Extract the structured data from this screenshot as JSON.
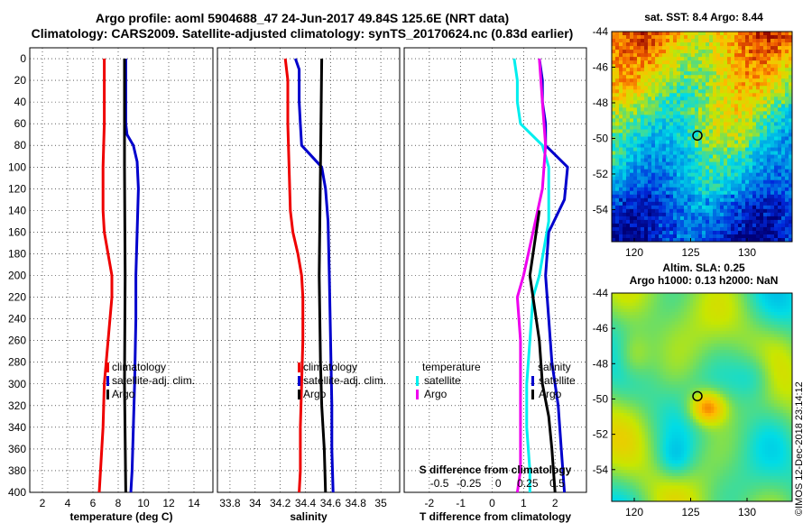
{
  "header": {
    "line1": "Argo profile: aoml 5904688_47 24-Jun-2017 49.84S 125.6E (NRT data)",
    "line2": "Climatology: CARS2009. Satellite-adjusted climatology: synTS_20170624.nc (0.83d earlier)"
  },
  "credit": "©IMOS 12-Dec-2018 23:14:12",
  "colors": {
    "red": "#ee0000",
    "blue": "#0000cc",
    "black": "#000000",
    "cyan": "#00eeee",
    "magenta": "#ee00ee"
  },
  "depth_axis": {
    "ticks": [
      0,
      20,
      40,
      60,
      80,
      100,
      120,
      140,
      160,
      180,
      200,
      220,
      240,
      260,
      280,
      300,
      320,
      340,
      360,
      380,
      400
    ]
  },
  "chart_data": [
    {
      "type": "line",
      "name": "temperature",
      "xlabel": "temperature (deg C)",
      "ylabel": "depth",
      "xlim": [
        1,
        15.5
      ],
      "ylim": [
        400,
        -10
      ],
      "xticks": [
        2,
        4,
        6,
        8,
        10,
        12,
        14
      ],
      "xticklabels": [
        "2",
        "4",
        "6",
        "8",
        "10",
        "12",
        "14"
      ],
      "legend": [
        "climatology",
        "satellite-adj. clim.",
        "Argo"
      ],
      "series": [
        {
          "name": "climatology",
          "color": "red",
          "points": [
            [
              6.9,
              0
            ],
            [
              6.9,
              20
            ],
            [
              6.9,
              60
            ],
            [
              6.8,
              100
            ],
            [
              6.8,
              140
            ],
            [
              6.9,
              160
            ],
            [
              7.2,
              180
            ],
            [
              7.5,
              200
            ],
            [
              7.5,
              220
            ],
            [
              7.2,
              260
            ],
            [
              6.9,
              300
            ],
            [
              6.8,
              340
            ],
            [
              6.6,
              380
            ],
            [
              6.5,
              400
            ]
          ]
        },
        {
          "name": "satellite-adj. clim.",
          "color": "blue",
          "points": [
            [
              8.6,
              0
            ],
            [
              8.6,
              20
            ],
            [
              8.6,
              60
            ],
            [
              8.7,
              70
            ],
            [
              9.2,
              80
            ],
            [
              9.5,
              95
            ],
            [
              9.6,
              120
            ],
            [
              9.5,
              160
            ],
            [
              9.4,
              200
            ],
            [
              9.4,
              240
            ],
            [
              9.3,
              300
            ],
            [
              9.2,
              340
            ],
            [
              9.1,
              380
            ],
            [
              9.0,
              400
            ]
          ]
        },
        {
          "name": "Argo",
          "color": "black",
          "points": [
            [
              8.5,
              0
            ],
            [
              8.5,
              100
            ],
            [
              8.55,
              200
            ],
            [
              8.5,
              300
            ],
            [
              8.6,
              400
            ]
          ]
        }
      ]
    },
    {
      "type": "line",
      "name": "salinity",
      "xlabel": "salinity",
      "ylabel": "depth",
      "xlim": [
        33.7,
        35.15
      ],
      "ylim": [
        400,
        -10
      ],
      "xticks": [
        33.8,
        34,
        34.2,
        34.4,
        34.6,
        34.8,
        35
      ],
      "xticklabels": [
        "33.8",
        "34",
        "34.2",
        "34.4",
        "34.6",
        "34.8",
        "35"
      ],
      "legend": [
        "climatology",
        "satellite-adj. clim.",
        "Argo"
      ],
      "series": [
        {
          "name": "climatology",
          "color": "red",
          "points": [
            [
              34.24,
              0
            ],
            [
              34.26,
              20
            ],
            [
              34.26,
              60
            ],
            [
              34.27,
              100
            ],
            [
              34.28,
              140
            ],
            [
              34.3,
              160
            ],
            [
              34.34,
              180
            ],
            [
              34.37,
              200
            ],
            [
              34.38,
              220
            ],
            [
              34.38,
              260
            ],
            [
              34.37,
              300
            ],
            [
              34.36,
              340
            ],
            [
              34.36,
              380
            ],
            [
              34.35,
              400
            ]
          ]
        },
        {
          "name": "satellite-adj. clim.",
          "color": "blue",
          "points": [
            [
              34.32,
              0
            ],
            [
              34.35,
              10
            ],
            [
              34.35,
              40
            ],
            [
              34.36,
              60
            ],
            [
              34.37,
              80
            ],
            [
              34.53,
              100
            ],
            [
              34.56,
              120
            ],
            [
              34.58,
              150
            ],
            [
              34.59,
              200
            ],
            [
              34.6,
              260
            ],
            [
              34.61,
              320
            ],
            [
              34.61,
              360
            ],
            [
              34.62,
              400
            ]
          ]
        },
        {
          "name": "Argo",
          "color": "black",
          "points": [
            [
              34.53,
              0
            ],
            [
              34.52,
              100
            ],
            [
              34.51,
              200
            ],
            [
              34.52,
              280
            ],
            [
              34.53,
              320
            ],
            [
              34.55,
              360
            ],
            [
              34.56,
              400
            ]
          ]
        }
      ]
    },
    {
      "type": "line",
      "name": "difference from climatology",
      "xlabel": "T difference from climatology",
      "xlabel2": "S difference from climatology",
      "ylabel": "depth",
      "xlim": [
        -2.8,
        3.0
      ],
      "ylim": [
        400,
        -10
      ],
      "xticks": [
        -2,
        -1,
        0,
        1,
        2
      ],
      "xticklabels": [
        "-2",
        "-1",
        "0",
        "1",
        "2"
      ],
      "xticks2_values": [
        -0.5,
        -0.25,
        0,
        0.25,
        0.5
      ],
      "xticks2_labels": [
        "-0.5",
        "-0.25",
        "0",
        "0.25",
        "0.5"
      ],
      "legend_left": [
        "temperature",
        "satellite",
        "Argo"
      ],
      "legend_right": [
        "salinity",
        "satellite",
        "Argo"
      ],
      "series": [
        {
          "name": "temperature satellite",
          "color": "cyan",
          "points": [
            [
              0.7,
              0
            ],
            [
              0.8,
              20
            ],
            [
              0.8,
              40
            ],
            [
              0.9,
              60
            ],
            [
              1.6,
              80
            ],
            [
              1.8,
              100
            ],
            [
              1.8,
              150
            ],
            [
              1.5,
              200
            ],
            [
              1.3,
              220
            ],
            [
              1.2,
              260
            ],
            [
              1.1,
              300
            ],
            [
              1.1,
              340
            ],
            [
              1.2,
              380
            ],
            [
              1.2,
              400
            ]
          ]
        },
        {
          "name": "salinity satellite",
          "color": "blue",
          "points": [
            [
              1.5,
              0
            ],
            [
              1.6,
              20
            ],
            [
              1.6,
              40
            ],
            [
              1.7,
              60
            ],
            [
              1.7,
              80
            ],
            [
              2.4,
              100
            ],
            [
              2.3,
              130
            ],
            [
              1.8,
              160
            ],
            [
              1.7,
              200
            ],
            [
              1.8,
              240
            ],
            [
              1.9,
              280
            ],
            [
              2.1,
              320
            ],
            [
              2.2,
              360
            ],
            [
              2.3,
              400
            ]
          ]
        },
        {
          "name": "temperature Argo",
          "color": "magenta",
          "points": [
            [
              1.5,
              0
            ],
            [
              1.6,
              40
            ],
            [
              1.7,
              80
            ],
            [
              1.6,
              120
            ],
            [
              1.3,
              160
            ],
            [
              1.0,
              200
            ],
            [
              0.8,
              220
            ],
            [
              0.9,
              260
            ],
            [
              0.9,
              300
            ],
            [
              0.9,
              340
            ],
            [
              0.9,
              380
            ],
            [
              0.8,
              400
            ]
          ]
        },
        {
          "name": "salinity Argo",
          "color": "black",
          "points": [
            [
              1.5,
              140
            ],
            [
              1.3,
              180
            ],
            [
              1.2,
              200
            ],
            [
              1.3,
              220
            ],
            [
              1.5,
              260
            ],
            [
              1.6,
              300
            ],
            [
              1.8,
              330
            ],
            [
              1.9,
              360
            ],
            [
              2.0,
              400
            ]
          ]
        }
      ]
    },
    {
      "type": "heatmap",
      "name": "sat SST map",
      "title": "sat. SST: 8.4  Argo: 8.44",
      "xlim": [
        118,
        134
      ],
      "ylim": [
        -55.8,
        -44
      ],
      "xticks": [
        120,
        125,
        130
      ],
      "yticks": [
        -44,
        -46,
        -48,
        -50,
        -52,
        -54
      ],
      "xticklabels": [
        "120",
        "125",
        "130"
      ],
      "yticklabels": [
        "-44",
        "-46",
        "-48",
        "-50",
        "-52",
        "-54"
      ],
      "marker": [
        125.6,
        -49.84
      ]
    },
    {
      "type": "heatmap",
      "name": "altimetry SLA map",
      "title1": "Altim. SLA: 0.25",
      "title2": "Argo h1000: 0.13 h2000: NaN",
      "xlim": [
        118,
        134
      ],
      "ylim": [
        -55.8,
        -44
      ],
      "xticks": [
        120,
        125,
        130
      ],
      "yticks": [
        -44,
        -46,
        -48,
        -50,
        -52,
        -54
      ],
      "xticklabels": [
        "120",
        "125",
        "130"
      ],
      "yticklabels": [
        "-44",
        "-46",
        "-48",
        "-50",
        "-52",
        "-54"
      ],
      "marker": [
        125.6,
        -49.84
      ]
    }
  ]
}
